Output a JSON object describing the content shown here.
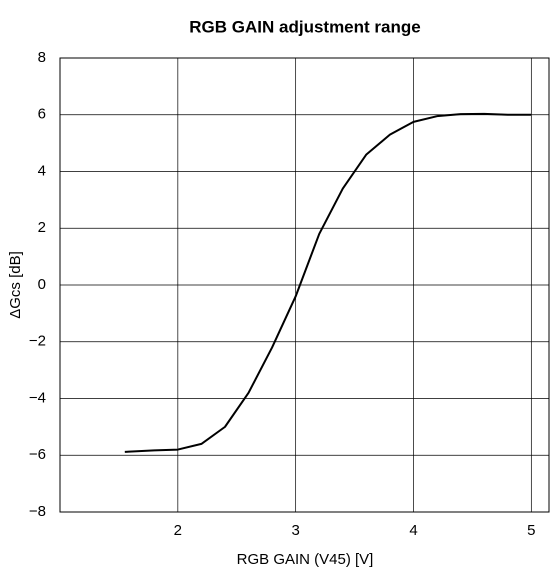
{
  "chart_data": {
    "type": "line",
    "title": "RGB GAIN adjustment range",
    "xlabel": "RGB GAIN (V45) [V]",
    "ylabel": "ΔGcs [dB]",
    "x": [
      1.55,
      1.8,
      2.0,
      2.2,
      2.4,
      2.6,
      2.8,
      3.0,
      3.2,
      3.4,
      3.6,
      3.8,
      4.0,
      4.2,
      4.4,
      4.6,
      4.8,
      5.0
    ],
    "series": [
      {
        "name": "ΔGcs",
        "color": "#000000",
        "values": [
          -5.88,
          -5.83,
          -5.8,
          -5.6,
          -5.0,
          -3.8,
          -2.2,
          -0.4,
          1.8,
          3.4,
          4.6,
          5.3,
          5.75,
          5.95,
          6.02,
          6.03,
          6.0,
          6.0
        ]
      }
    ],
    "xlim": [
      1.0,
      5.15
    ],
    "xticks": [
      2,
      3,
      4,
      5
    ],
    "ylim": [
      -8,
      8
    ],
    "yticks": [
      {
        "value": -8,
        "label": "−8"
      },
      {
        "value": -6,
        "label": "−6"
      },
      {
        "value": -4,
        "label": "−4"
      },
      {
        "value": -2,
        "label": "−2"
      },
      0,
      2,
      4,
      6,
      8
    ],
    "grid": true
  }
}
